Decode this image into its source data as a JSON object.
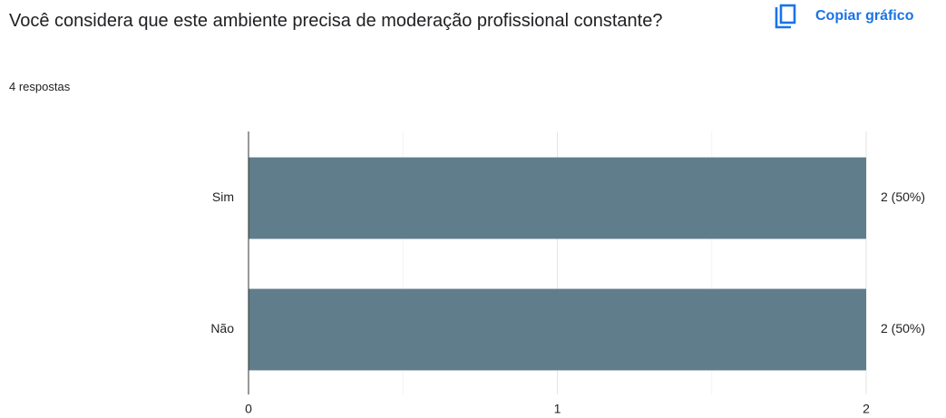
{
  "title": "Você considera que este ambiente precisa de moderação profissional constante?",
  "subtitle": "4 respostas",
  "copy_button": "Copiar gráfico",
  "chart_data": {
    "type": "hbar",
    "categories": [
      "Sim",
      "Não"
    ],
    "values": [
      2,
      2
    ],
    "value_labels": [
      "2 (50%)",
      "2 (50%)"
    ],
    "color": "#607d8b",
    "xlim": [
      0,
      2
    ],
    "xticks": [
      0,
      1,
      2
    ],
    "minor_xticks": [
      0.5,
      1.5
    ],
    "grid": true
  }
}
